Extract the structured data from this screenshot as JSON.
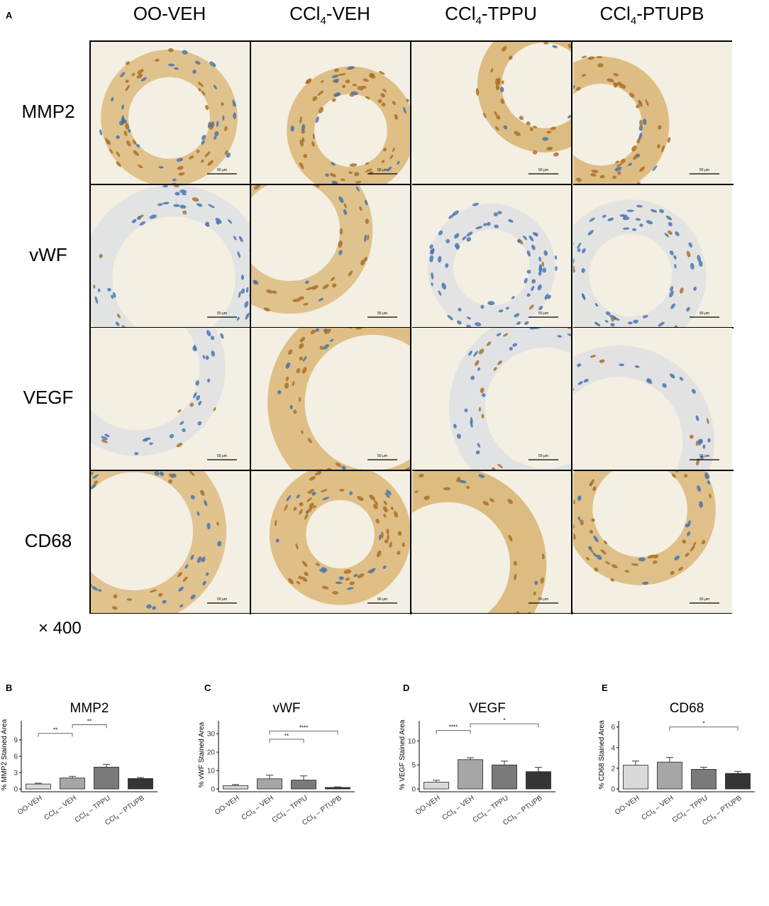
{
  "panel_labels": {
    "a": "A",
    "b": "B",
    "c": "C",
    "d": "D",
    "e": "E"
  },
  "micrograph": {
    "columns": [
      {
        "main": "OO-VEH",
        "sub": "",
        "rest": ""
      },
      {
        "main": "CCl",
        "sub": "4",
        "rest": "-VEH"
      },
      {
        "main": "CCl",
        "sub": "4",
        "rest": "-TPPU"
      },
      {
        "main": "CCl",
        "sub": "4",
        "rest": "-PTUPB"
      }
    ],
    "rows": [
      "MMP2",
      "vWF",
      "VEGF",
      "CD68"
    ],
    "scale_bar": "50 μm",
    "magnification": "× 400",
    "stain_colors": {
      "brown": "#a86a22",
      "tan": "#d9b26f",
      "nucleus": "#3f6fb0",
      "background": "#f3efe2"
    },
    "stain_intensity": [
      [
        0.55,
        0.7,
        0.85,
        0.75
      ],
      [
        0.15,
        0.55,
        0.1,
        0.12
      ],
      [
        0.2,
        0.7,
        0.3,
        0.22
      ],
      [
        0.5,
        0.7,
        0.85,
        0.65
      ]
    ]
  },
  "chart_data": [
    {
      "type": "bar",
      "panel": "B",
      "title": "MMP2",
      "ylabel": "% MMP2 Stained Area",
      "categories": [
        "OO-VEH",
        "CCl4-VEH",
        "CCl4-TPPU",
        "CCl4-PTUPB"
      ],
      "values": [
        0.9,
        2.0,
        4.0,
        1.9
      ],
      "errors": [
        0.15,
        0.3,
        0.5,
        0.2
      ],
      "bar_colors": [
        "#d9d9d9",
        "#a6a6a6",
        "#7a7a7a",
        "#353535"
      ],
      "ylim": [
        0,
        12.5
      ],
      "yticks": [
        "0",
        "3",
        "6",
        "9"
      ],
      "ytick_values": [
        0,
        3,
        6,
        9
      ],
      "significance": [
        {
          "from": 0,
          "to": 1,
          "label": "**",
          "y": 10.2
        },
        {
          "from": 1,
          "to": 2,
          "label": "**",
          "y": 11.8
        }
      ],
      "grid": false
    },
    {
      "type": "bar",
      "panel": "C",
      "title": "vWF",
      "ylabel": "% vWF Stained Area",
      "categories": [
        "OO-VEH",
        "CCl4-VEH",
        "CCl4-TPPU",
        "CCl4-PTUPB"
      ],
      "values": [
        1.8,
        5.5,
        4.8,
        0.8
      ],
      "errors": [
        0.6,
        2.0,
        2.3,
        0.3
      ],
      "bar_colors": [
        "#d9d9d9",
        "#a6a6a6",
        "#7a7a7a",
        "#353535"
      ],
      "ylim": [
        0,
        37
      ],
      "yticks": [
        "0",
        "10",
        "20",
        "30"
      ],
      "ytick_values": [
        0,
        10,
        20,
        30
      ],
      "significance": [
        {
          "from": 1,
          "to": 2,
          "label": "**",
          "y": 27.0
        },
        {
          "from": 1,
          "to": 3,
          "label": "****",
          "y": 31.5
        }
      ],
      "grid": false
    },
    {
      "type": "bar",
      "panel": "D",
      "title": "VEGF",
      "ylabel": "% VEGF Stained Area",
      "categories": [
        "OO-VEH",
        "CCl4-VEH",
        "CCl4-TPPU",
        "CCl4-PTUPB"
      ],
      "values": [
        1.4,
        6.1,
        5.0,
        3.6
      ],
      "errors": [
        0.4,
        0.4,
        0.8,
        0.9
      ],
      "bar_colors": [
        "#d9d9d9",
        "#a6a6a6",
        "#7a7a7a",
        "#353535"
      ],
      "ylim": [
        0,
        14.2
      ],
      "yticks": [
        "0",
        "5",
        "10"
      ],
      "ytick_values": [
        0,
        5,
        10
      ],
      "significance": [
        {
          "from": 0,
          "to": 1,
          "label": "****",
          "y": 12.2
        },
        {
          "from": 1,
          "to": 3,
          "label": "*",
          "y": 13.6
        }
      ],
      "grid": false
    },
    {
      "type": "bar",
      "panel": "E",
      "title": "CD68",
      "ylabel": "% CD68 Stained Area",
      "categories": [
        "OO-VEH",
        "CCl4-VEH",
        "CCl4-TPPU",
        "CCl4-PTUPB"
      ],
      "values": [
        2.3,
        2.6,
        1.9,
        1.5
      ],
      "errors": [
        0.4,
        0.45,
        0.2,
        0.2
      ],
      "bar_colors": [
        "#d9d9d9",
        "#a6a6a6",
        "#7a7a7a",
        "#353535"
      ],
      "ylim": [
        0,
        6.6
      ],
      "yticks": [
        "0",
        "2",
        "4",
        "6"
      ],
      "ytick_values": [
        0,
        2,
        4,
        6
      ],
      "significance": [
        {
          "from": 1,
          "to": 3,
          "label": "*",
          "y": 6.0
        }
      ],
      "grid": false
    }
  ]
}
